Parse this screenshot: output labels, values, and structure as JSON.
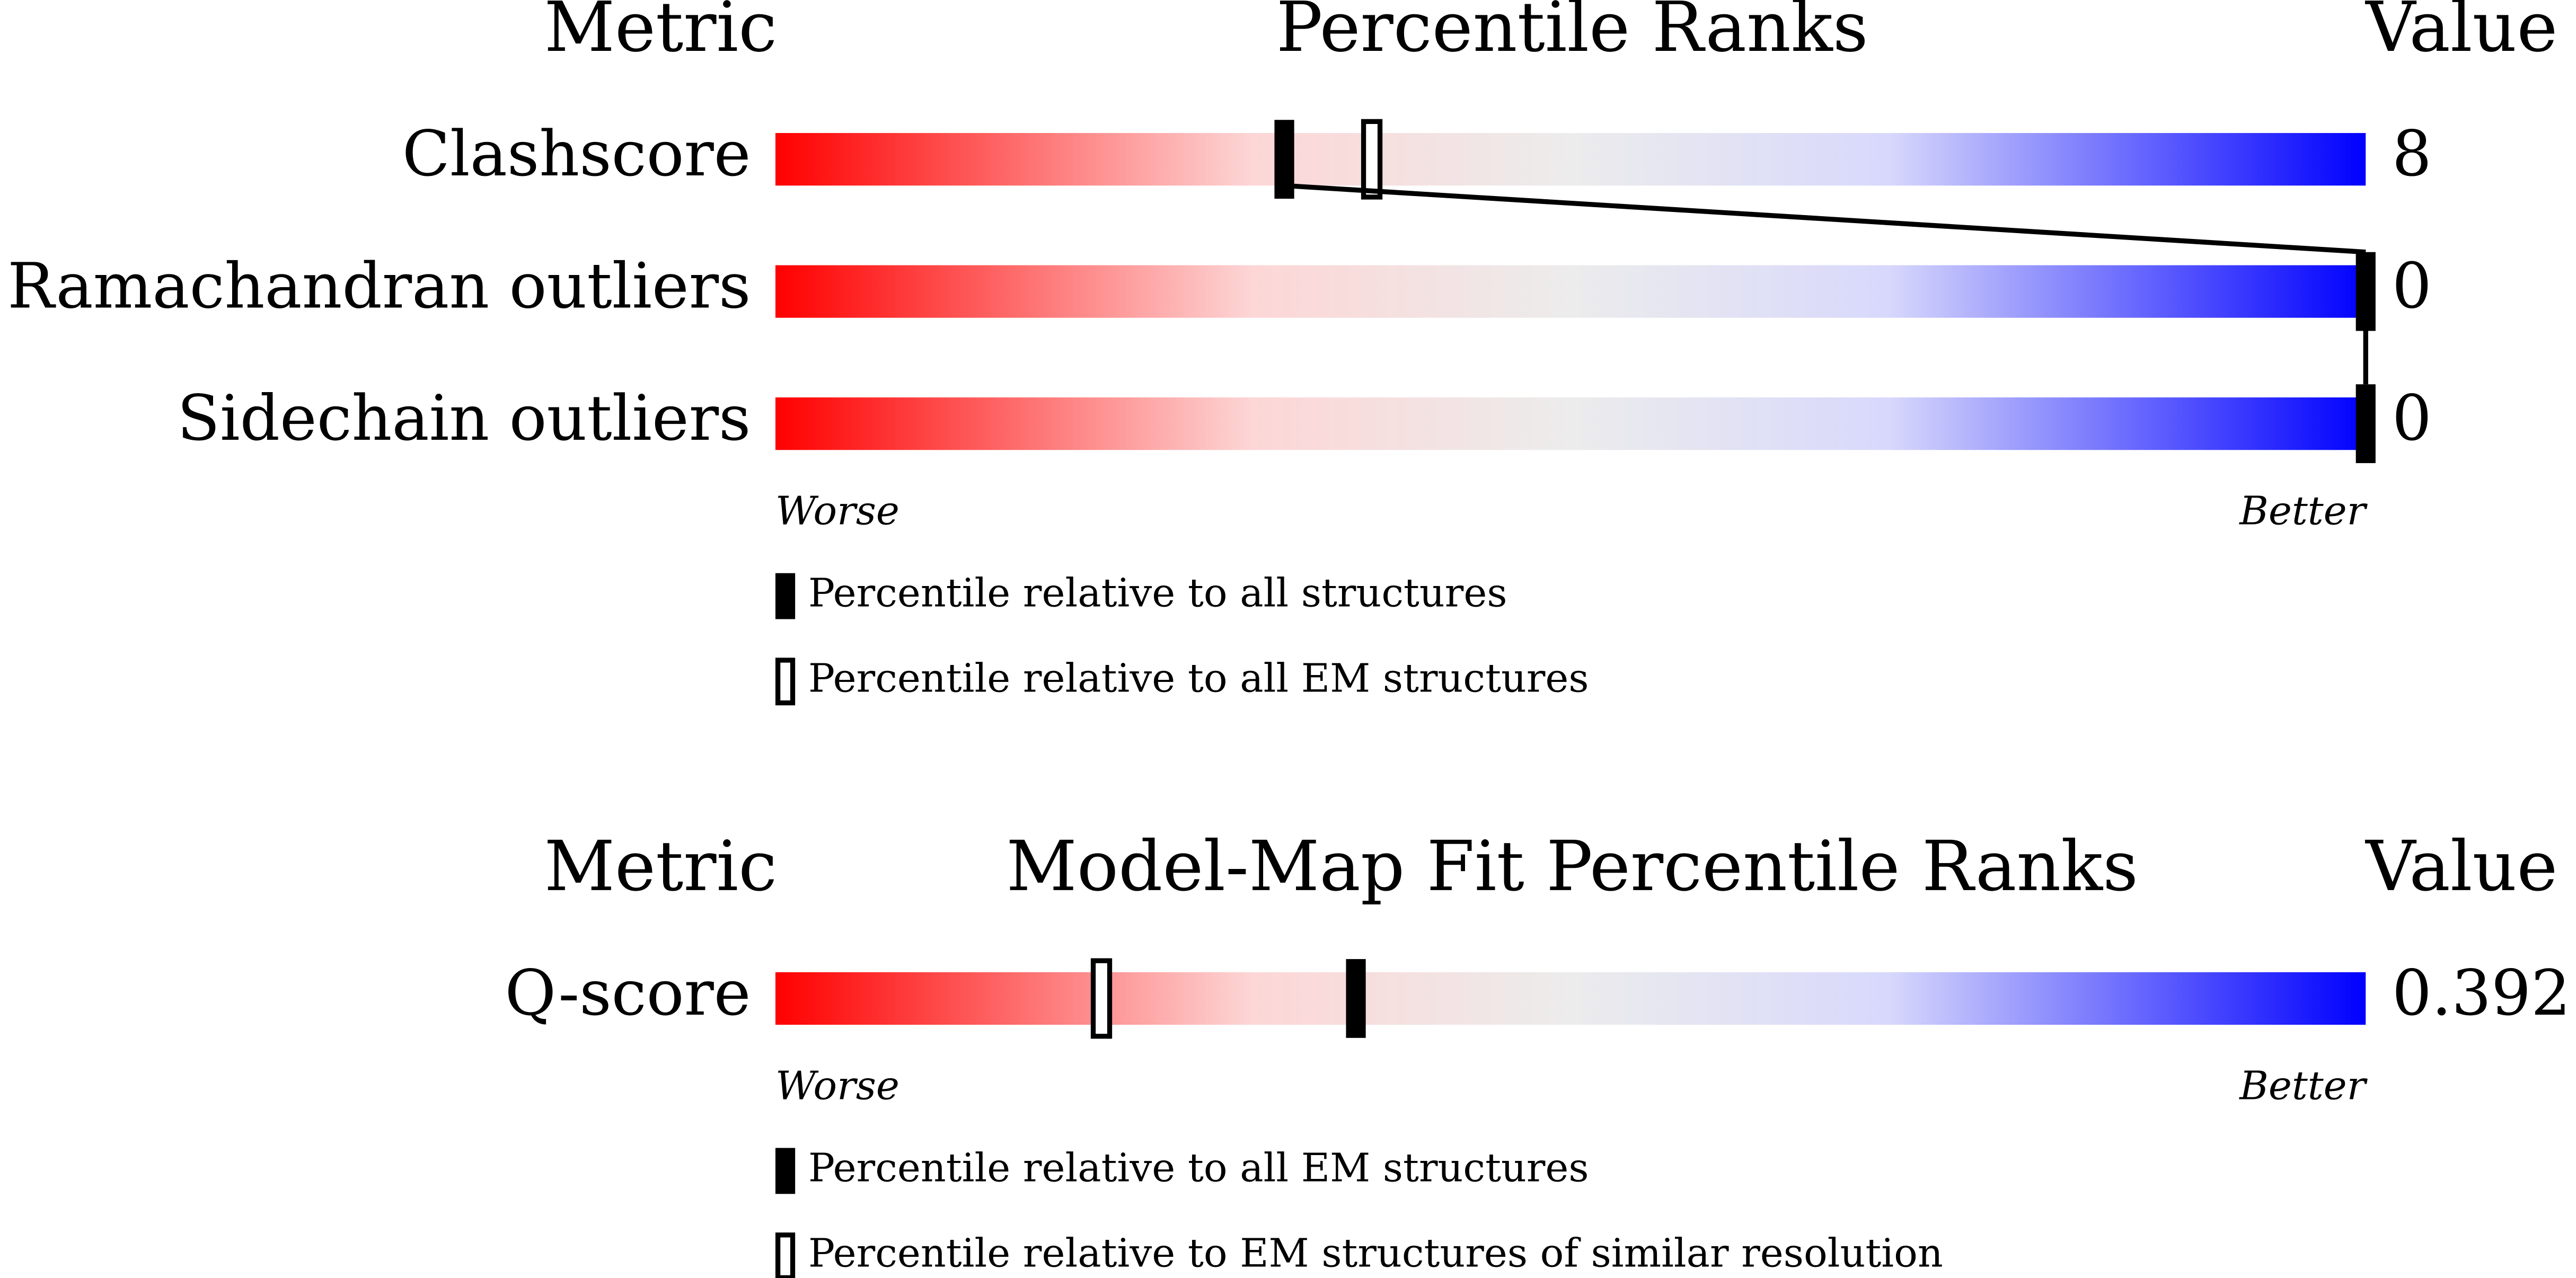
{
  "chart_data": [
    {
      "type": "slider",
      "title": "Percentile Ranks",
      "metric_header": "Metric",
      "value_header": "Value",
      "xlim": [
        0,
        100
      ],
      "low_label": "Worse",
      "high_label": "Better",
      "legend": [
        {
          "label": "Percentile relative to all structures",
          "style": "filled"
        },
        {
          "label": "Percentile relative to all EM structures",
          "style": "open"
        }
      ],
      "rows": [
        {
          "metric": "Clashscore",
          "value": "8",
          "percentiles": [
            32,
            37.5
          ]
        },
        {
          "metric": "Ramachandran outliers",
          "value": "0",
          "percentiles": [
            100
          ]
        },
        {
          "metric": "Sidechain outliers",
          "value": "0",
          "percentiles": [
            100
          ]
        }
      ]
    },
    {
      "type": "slider",
      "title": "Model-Map Fit Percentile Ranks",
      "metric_header": "Metric",
      "value_header": "Value",
      "xlim": [
        0,
        100
      ],
      "low_label": "Worse",
      "high_label": "Better",
      "legend": [
        {
          "label": "Percentile relative to all EM structures",
          "style": "filled"
        },
        {
          "label": "Percentile relative to EM structures of similar resolution",
          "style": "open"
        }
      ],
      "rows": [
        {
          "metric": "Q-score",
          "value": "0.392",
          "percentiles": [
            36.5,
            20.5
          ]
        }
      ]
    }
  ]
}
